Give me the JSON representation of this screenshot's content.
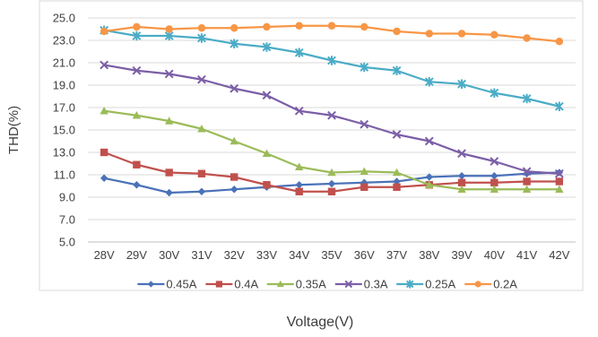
{
  "chart_data": {
    "type": "line",
    "ylabel": "THD(%)",
    "xlabel": "Voltage(V)",
    "categories": [
      "28V",
      "29V",
      "30V",
      "31V",
      "32V",
      "33V",
      "34V",
      "35V",
      "36V",
      "37V",
      "38V",
      "39V",
      "40V",
      "41V",
      "42V"
    ],
    "ylim": [
      5.0,
      25.0
    ],
    "yticks": [
      "5.0",
      "7.0",
      "9.0",
      "11.0",
      "13.0",
      "15.0",
      "17.0",
      "19.0",
      "21.0",
      "23.0",
      "25.0"
    ],
    "grid": true,
    "legend": "bottom",
    "series": [
      {
        "name": "0.45A",
        "color": "#4a72b8",
        "marker": "diamond",
        "values": [
          10.7,
          10.1,
          9.4,
          9.5,
          9.7,
          9.9,
          10.1,
          10.2,
          10.3,
          10.4,
          10.8,
          10.9,
          10.9,
          11.1,
          11.2
        ]
      },
      {
        "name": "0.4A",
        "color": "#c0504d",
        "marker": "square",
        "values": [
          13.0,
          11.9,
          11.2,
          11.1,
          10.8,
          10.1,
          9.5,
          9.5,
          9.9,
          9.9,
          10.1,
          10.3,
          10.3,
          10.4,
          10.4
        ]
      },
      {
        "name": "0.35A",
        "color": "#9bbb59",
        "marker": "triangle",
        "values": [
          16.7,
          16.3,
          15.8,
          15.1,
          14.0,
          12.9,
          11.7,
          11.2,
          11.3,
          11.2,
          10.1,
          9.7,
          9.7,
          9.7,
          9.7
        ]
      },
      {
        "name": "0.3A",
        "color": "#7b5ea7",
        "marker": "x",
        "values": [
          20.8,
          20.3,
          20.0,
          19.5,
          18.7,
          18.1,
          16.7,
          16.3,
          15.5,
          14.6,
          14.0,
          12.9,
          12.2,
          11.3,
          11.1
        ]
      },
      {
        "name": "0.25A",
        "color": "#4bacc6",
        "marker": "star",
        "values": [
          23.9,
          23.4,
          23.4,
          23.2,
          22.7,
          22.4,
          21.9,
          21.2,
          20.6,
          20.3,
          19.3,
          19.1,
          18.3,
          17.8,
          17.1
        ]
      },
      {
        "name": "0.2A",
        "color": "#f79646",
        "marker": "circle",
        "values": [
          23.8,
          24.2,
          24.0,
          24.1,
          24.1,
          24.2,
          24.3,
          24.3,
          24.2,
          23.8,
          23.6,
          23.6,
          23.5,
          23.2,
          22.9
        ]
      }
    ]
  }
}
